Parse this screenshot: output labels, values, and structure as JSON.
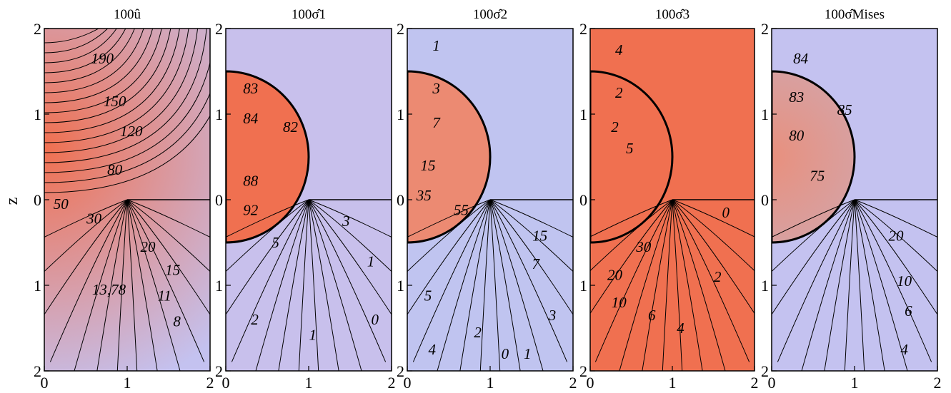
{
  "figure": {
    "ylabel": "z"
  },
  "chart_data": [
    {
      "type": "heatmap",
      "title": "100û",
      "xlabel": "",
      "ylabel": "z",
      "xlim": [
        0,
        2
      ],
      "ylim": [
        -2,
        2
      ],
      "x_ticks": [
        "0",
        "1",
        "2"
      ],
      "y_ticks": [
        "2",
        "1",
        "0",
        "1",
        "2"
      ],
      "colors": {
        "high": "#f07050",
        "low": "#c4c2f0"
      },
      "contour_labels": [
        {
          "text": "190",
          "x": 0.7,
          "y": 1.65
        },
        {
          "text": "150",
          "x": 0.85,
          "y": 1.15
        },
        {
          "text": "120",
          "x": 1.05,
          "y": 0.8
        },
        {
          "text": "80",
          "x": 0.85,
          "y": 0.35
        },
        {
          "text": "50",
          "x": 0.2,
          "y": -0.05
        },
        {
          "text": "30",
          "x": 0.6,
          "y": -0.22
        },
        {
          "text": "20",
          "x": 1.25,
          "y": -0.55
        },
        {
          "text": "15",
          "x": 1.55,
          "y": -0.82
        },
        {
          "text": "13,78",
          "x": 0.78,
          "y": -1.05
        },
        {
          "text": "11",
          "x": 1.45,
          "y": -1.12
        },
        {
          "text": "8",
          "x": 1.6,
          "y": -1.42
        }
      ]
    },
    {
      "type": "heatmap",
      "title": "100σ̂1",
      "xlabel": "",
      "ylabel": "",
      "xlim": [
        0,
        2
      ],
      "ylim": [
        -2,
        2
      ],
      "x_ticks": [
        "0",
        "1",
        "2"
      ],
      "y_ticks": [
        "2",
        "1",
        "0",
        "1",
        "2"
      ],
      "colors": {
        "high": "#f07050",
        "low": "#c8c0ec"
      },
      "contour_labels": [
        {
          "text": "83",
          "x": 0.3,
          "y": 1.3
        },
        {
          "text": "84",
          "x": 0.3,
          "y": 0.95
        },
        {
          "text": "82",
          "x": 0.78,
          "y": 0.85
        },
        {
          "text": "88",
          "x": 0.3,
          "y": 0.22
        },
        {
          "text": "92",
          "x": 0.3,
          "y": -0.12
        },
        {
          "text": "5",
          "x": 0.6,
          "y": -0.5
        },
        {
          "text": "3",
          "x": 1.45,
          "y": -0.25
        },
        {
          "text": "1",
          "x": 1.75,
          "y": -0.72
        },
        {
          "text": "2",
          "x": 0.35,
          "y": -1.4
        },
        {
          "text": "1",
          "x": 1.05,
          "y": -1.58
        },
        {
          "text": "0",
          "x": 1.8,
          "y": -1.4
        }
      ]
    },
    {
      "type": "heatmap",
      "title": "100σ̂2",
      "xlabel": "",
      "ylabel": "",
      "xlim": [
        0,
        2
      ],
      "ylim": [
        -2,
        2
      ],
      "x_ticks": [
        "0",
        "1",
        "2"
      ],
      "y_ticks": [
        "2",
        "1",
        "0",
        "1",
        "2"
      ],
      "colors": {
        "high": "#ec8a72",
        "low": "#c0c4f0"
      },
      "contour_labels": [
        {
          "text": "1",
          "x": 0.35,
          "y": 1.8
        },
        {
          "text": "3",
          "x": 0.35,
          "y": 1.3
        },
        {
          "text": "7",
          "x": 0.35,
          "y": 0.9
        },
        {
          "text": "15",
          "x": 0.25,
          "y": 0.4
        },
        {
          "text": "35",
          "x": 0.2,
          "y": 0.05
        },
        {
          "text": "55",
          "x": 0.65,
          "y": -0.12
        },
        {
          "text": "15",
          "x": 1.6,
          "y": -0.42
        },
        {
          "text": "7",
          "x": 1.55,
          "y": -0.75
        },
        {
          "text": "5",
          "x": 0.25,
          "y": -1.12
        },
        {
          "text": "3",
          "x": 1.75,
          "y": -1.35
        },
        {
          "text": "2",
          "x": 0.85,
          "y": -1.55
        },
        {
          "text": "4",
          "x": 0.3,
          "y": -1.75
        },
        {
          "text": "0",
          "x": 1.18,
          "y": -1.8
        },
        {
          "text": "1",
          "x": 1.45,
          "y": -1.8
        }
      ]
    },
    {
      "type": "heatmap",
      "title": "100σ̂3",
      "xlabel": "",
      "ylabel": "",
      "xlim": [
        0,
        2
      ],
      "ylim": [
        -2,
        2
      ],
      "x_ticks": [
        "0",
        "1",
        "2"
      ],
      "y_ticks": [
        "2",
        "1",
        "0",
        "1",
        "2"
      ],
      "colors": {
        "high": "#f07050",
        "low": "#c8c0ec"
      },
      "contour_labels": [
        {
          "text": "4",
          "x": 0.35,
          "y": 1.75
        },
        {
          "text": "2",
          "x": 0.35,
          "y": 1.25
        },
        {
          "text": "2",
          "x": 0.3,
          "y": 0.85
        },
        {
          "text": "5",
          "x": 0.48,
          "y": 0.6
        },
        {
          "text": "0",
          "x": 1.65,
          "y": -0.15
        },
        {
          "text": "30",
          "x": 0.65,
          "y": -0.55
        },
        {
          "text": "20",
          "x": 0.3,
          "y": -0.88
        },
        {
          "text": "10",
          "x": 0.35,
          "y": -1.2
        },
        {
          "text": "6",
          "x": 0.75,
          "y": -1.35
        },
        {
          "text": "4",
          "x": 1.1,
          "y": -1.5
        },
        {
          "text": "2",
          "x": 1.55,
          "y": -0.9
        }
      ]
    },
    {
      "type": "heatmap",
      "title": "100σ̂Mises",
      "xlabel": "",
      "ylabel": "",
      "xlim": [
        0,
        2
      ],
      "ylim": [
        -2,
        2
      ],
      "x_ticks": [
        "0",
        "1",
        "2"
      ],
      "y_ticks": [
        "2",
        "1",
        "0",
        "1",
        "2"
      ],
      "colors": {
        "high": "#e8907e",
        "low": "#c4c2f0"
      },
      "contour_labels": [
        {
          "text": "84",
          "x": 0.35,
          "y": 1.65
        },
        {
          "text": "83",
          "x": 0.3,
          "y": 1.2
        },
        {
          "text": "80",
          "x": 0.3,
          "y": 0.75
        },
        {
          "text": "85",
          "x": 0.88,
          "y": 1.05
        },
        {
          "text": "75",
          "x": 0.55,
          "y": 0.28
        },
        {
          "text": "20",
          "x": 1.5,
          "y": -0.42
        },
        {
          "text": "10",
          "x": 1.6,
          "y": -0.95
        },
        {
          "text": "6",
          "x": 1.65,
          "y": -1.3
        },
        {
          "text": "4",
          "x": 1.6,
          "y": -1.75
        }
      ]
    }
  ]
}
